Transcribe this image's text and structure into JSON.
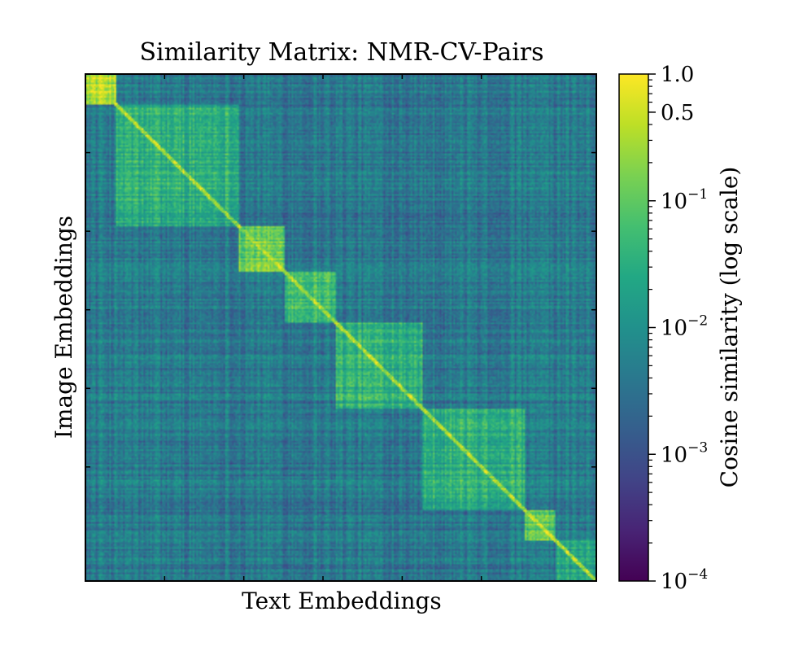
{
  "chart_data": {
    "type": "heatmap",
    "title": "Similarity Matrix: NMR-CV-Pairs",
    "xlabel": "Text Embeddings",
    "ylabel": "Image Embeddings",
    "colorbar": {
      "label": "Cosine similarity (log scale)",
      "scale": "log",
      "range": [
        0.0001,
        1.0
      ],
      "colormap": "viridis",
      "ticks": [
        {
          "value": 1.0,
          "base": "1.0",
          "exp": ""
        },
        {
          "value": 0.5,
          "base": "0.5",
          "exp": ""
        },
        {
          "value": 0.1,
          "base": "10",
          "exp": "−1"
        },
        {
          "value": 0.01,
          "base": "10",
          "exp": "−2"
        },
        {
          "value": 0.001,
          "base": "10",
          "exp": "−3"
        },
        {
          "value": 0.0001,
          "base": "10",
          "exp": "−4"
        }
      ]
    },
    "diagonal_blocks": [
      {
        "start": 0.0,
        "end": 0.06,
        "mean": 0.35
      },
      {
        "start": 0.06,
        "end": 0.3,
        "mean": 0.03
      },
      {
        "start": 0.3,
        "end": 0.39,
        "mean": 0.12
      },
      {
        "start": 0.39,
        "end": 0.49,
        "mean": 0.06
      },
      {
        "start": 0.49,
        "end": 0.66,
        "mean": 0.035
      },
      {
        "start": 0.66,
        "end": 0.86,
        "mean": 0.03
      },
      {
        "start": 0.86,
        "end": 0.92,
        "mean": 0.08
      },
      {
        "start": 0.92,
        "end": 1.0,
        "mean": 0.02
      }
    ],
    "background_mean": 0.004,
    "diagonal_value": 0.3
  }
}
